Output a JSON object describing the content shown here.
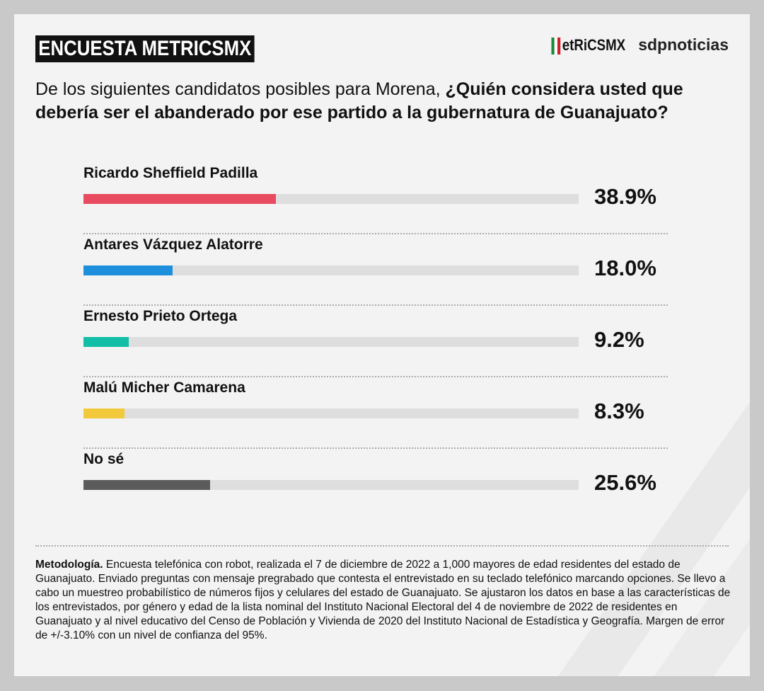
{
  "header": {
    "tag": "ENCUESTA METRICSMX",
    "logo_metrics": "etRiCSMX",
    "logo_sdp": "sdpnoticias"
  },
  "question": {
    "regular": "De los siguientes candidatos posibles para Morena, ",
    "bold": "¿Quién considera usted que debería ser el abanderado por ese partido a la gubernatura de Guanajuato?"
  },
  "chart_data": {
    "type": "bar",
    "orientation": "horizontal",
    "xlim": [
      0,
      100
    ],
    "categories": [
      "Ricardo Sheffield Padilla",
      "Antares Vázquez Alatorre",
      "Ernesto Prieto Ortega",
      "Malú Micher Camarena",
      "No sé"
    ],
    "values": [
      38.9,
      18.0,
      9.2,
      8.3,
      25.6
    ],
    "labels": [
      "38.9%",
      "18.0%",
      "9.2%",
      "8.3%",
      "25.6%"
    ],
    "colors": [
      "#e84a5f",
      "#1e8fdc",
      "#12bfa6",
      "#f2c93a",
      "#5b5b5b"
    ]
  },
  "methodology": {
    "label": "Metodología.",
    "text": " Encuesta telefónica con robot, realizada el 7 de diciembre de 2022 a 1,000 mayores de edad residentes del estado de Guanajuato. Enviado preguntas con mensaje pregrabado que contesta el entrevistado en su teclado telefónico marcando opciones. Se llevo a cabo un muestreo probabilístico de números fijos y celulares del estado de Guanajuato. Se ajustaron los datos en base a las características de los entrevistados, por género y edad de la lista nominal del Instituto Nacional Electoral del 4 de noviembre de 2022 de residentes en Guanajuato y al nivel educativo del Censo de Población y Vivienda de 2020 del Instituto Nacional de Estadística y Geografía. Margen de error de +/-3.10% con un nivel de confianza del 95%."
  }
}
